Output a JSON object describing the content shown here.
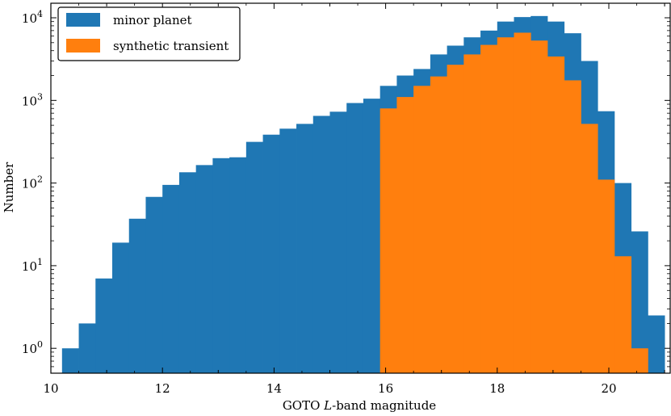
{
  "chart_data": {
    "type": "bar",
    "histogram": true,
    "xlabel_prefix": "GOTO ",
    "xlabel_em": "L",
    "xlabel_suffix": "-band magnitude",
    "ylabel": "Number",
    "xlim": [
      10,
      21.1
    ],
    "ylim": [
      0.5,
      15000
    ],
    "yscale": "log",
    "x_ticks": [
      10,
      12,
      14,
      16,
      18,
      20
    ],
    "y_ticks": [
      {
        "value": 1,
        "base": "10",
        "exp": "0"
      },
      {
        "value": 10,
        "base": "10",
        "exp": "1"
      },
      {
        "value": 100,
        "base": "10",
        "exp": "2"
      },
      {
        "value": 1000,
        "base": "10",
        "exp": "3"
      },
      {
        "value": 10000,
        "base": "10",
        "exp": "4"
      }
    ],
    "bin_edges": [
      10.2,
      10.5,
      10.8,
      11.1,
      11.4,
      11.7,
      12.0,
      12.3,
      12.6,
      12.9,
      13.2,
      13.5,
      13.8,
      14.1,
      14.4,
      14.7,
      15.0,
      15.3,
      15.6,
      15.9,
      16.2,
      16.5,
      16.8,
      17.1,
      17.4,
      17.7,
      18.0,
      18.3,
      18.6,
      18.9,
      19.2,
      19.5,
      19.8,
      20.1,
      20.4,
      20.7,
      21.0
    ],
    "legend_position": "top-left",
    "series": [
      {
        "name": "minor planet",
        "color": "#1f77b4",
        "values": [
          1,
          2,
          7,
          19,
          37,
          68,
          95,
          135,
          165,
          200,
          205,
          315,
          385,
          455,
          520,
          650,
          730,
          930,
          1050,
          1500,
          2000,
          2400,
          3600,
          4600,
          5800,
          7000,
          9000,
          10200,
          10500,
          9000,
          6500,
          3000,
          740,
          100,
          26,
          2.5
        ]
      },
      {
        "name": "synthetic transient",
        "color": "#ff7f0e",
        "values": [
          0,
          0,
          0,
          0,
          0,
          0,
          0,
          0,
          0,
          0,
          0,
          0,
          0,
          0,
          0,
          0,
          0,
          0,
          0,
          800,
          1100,
          1500,
          1950,
          2700,
          3600,
          4700,
          5800,
          6600,
          5300,
          3400,
          1750,
          520,
          110,
          13,
          1,
          0
        ]
      }
    ]
  }
}
